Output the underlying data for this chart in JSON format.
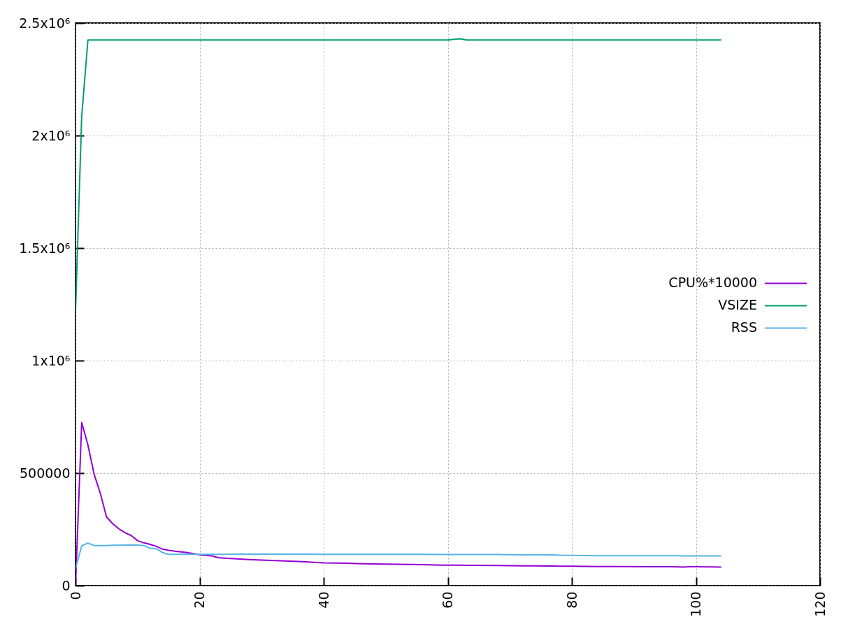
{
  "chart_data": {
    "type": "line",
    "x": [
      0,
      1,
      2,
      3,
      4,
      5,
      6,
      7,
      8,
      9,
      10,
      11,
      12,
      13,
      14,
      15,
      16,
      17,
      18,
      19,
      20,
      21,
      22,
      23,
      24,
      26,
      28,
      30,
      33,
      36,
      40,
      44,
      48,
      52,
      56,
      59,
      60,
      61,
      62,
      63,
      64,
      68,
      72,
      76,
      77,
      78,
      80,
      84,
      88,
      92,
      96,
      97,
      98,
      99,
      100,
      102,
      104
    ],
    "series": [
      {
        "name": "CPU%*10000",
        "color": "#9400d3",
        "values": [
          0,
          725000,
          625000,
          495000,
          410000,
          305000,
          275000,
          252000,
          235000,
          222000,
          200000,
          190000,
          183000,
          175000,
          162000,
          157000,
          153000,
          150000,
          147000,
          142000,
          137000,
          134000,
          132000,
          124000,
          122000,
          119000,
          116000,
          113000,
          110000,
          107000,
          101000,
          99000,
          96000,
          95000,
          93000,
          91000,
          91000,
          91000,
          91000,
          90000,
          90000,
          89000,
          88000,
          87000,
          87000,
          86000,
          86000,
          85000,
          85000,
          84000,
          84000,
          83000,
          82000,
          84000,
          84000,
          83000,
          82000
        ]
      },
      {
        "name": "VSIZE",
        "color": "#009e73",
        "values": [
          1220000,
          2085000,
          2425000,
          2425000,
          2425000,
          2425000,
          2425000,
          2425000,
          2425000,
          2425000,
          2425000,
          2425000,
          2425000,
          2425000,
          2425000,
          2425000,
          2425000,
          2425000,
          2425000,
          2425000,
          2425000,
          2425000,
          2425000,
          2425000,
          2425000,
          2425000,
          2425000,
          2425000,
          2425000,
          2425000,
          2425000,
          2425000,
          2425000,
          2425000,
          2425000,
          2425000,
          2425000,
          2428000,
          2430000,
          2425000,
          2425000,
          2425000,
          2425000,
          2425000,
          2425000,
          2425000,
          2425000,
          2425000,
          2425000,
          2425000,
          2425000,
          2425000,
          2425000,
          2425000,
          2425000,
          2425000,
          2425000
        ]
      },
      {
        "name": "RSS",
        "color": "#56b4e9",
        "values": [
          75000,
          177000,
          189000,
          178000,
          178000,
          178000,
          179000,
          179000,
          180000,
          180000,
          180000,
          178000,
          166000,
          164000,
          147000,
          139000,
          139000,
          139000,
          139000,
          139000,
          139000,
          139000,
          139000,
          139000,
          139000,
          140000,
          140000,
          140000,
          140000,
          140000,
          139000,
          139000,
          139000,
          139000,
          139000,
          138000,
          138000,
          138000,
          138000,
          138000,
          138000,
          138000,
          137000,
          137000,
          137000,
          135000,
          134000,
          133000,
          133000,
          133000,
          133000,
          133000,
          132000,
          132000,
          132000,
          132000,
          132000
        ]
      }
    ],
    "xlim": [
      0,
      120
    ],
    "xticks": [
      0,
      20,
      40,
      60,
      80,
      100,
      120
    ],
    "ylim": [
      0,
      2500000
    ],
    "yticks": [
      0,
      500000,
      {
        "value": 1000000,
        "label": "1x10⁶"
      },
      {
        "value": 1500000,
        "label": "1.5x10⁶"
      },
      {
        "value": 2000000,
        "label": "2x10⁶"
      },
      {
        "value": 2500000,
        "label": "2.5x10⁶"
      }
    ],
    "grid": true,
    "legend": "right"
  }
}
